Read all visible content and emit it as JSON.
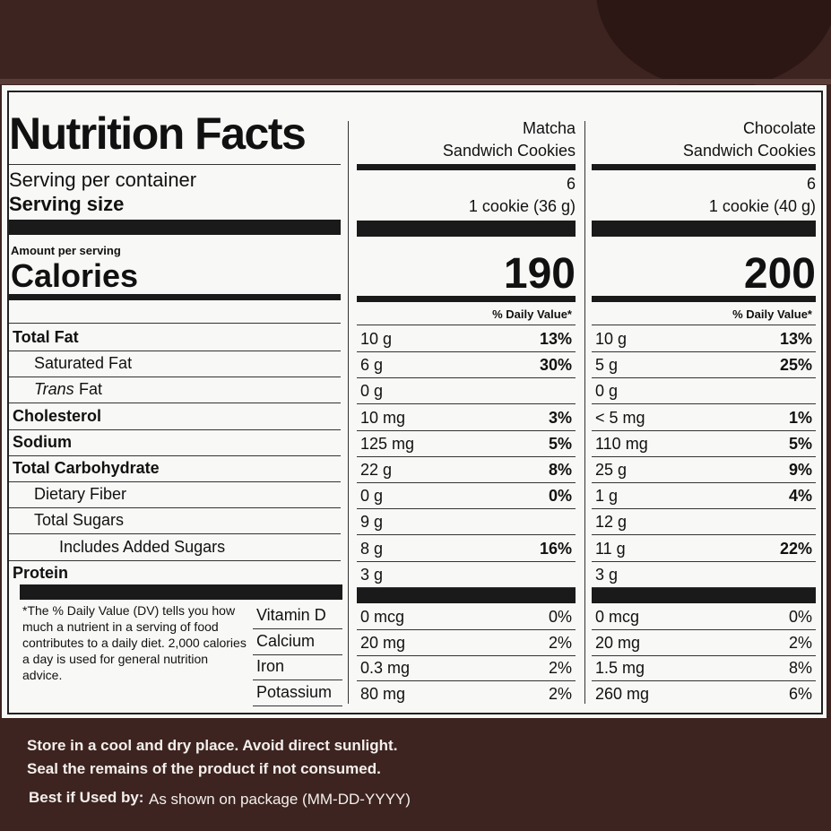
{
  "label": {
    "title": "Nutrition Facts",
    "serving_per_container": "Serving per container",
    "serving_size": "Serving size",
    "amount_per_serving": "Amount per serving",
    "calories": "Calories",
    "daily_value_header": "% Daily Value*",
    "products": [
      {
        "name_lines": [
          "Matcha",
          "Sandwich Cookies"
        ],
        "servings": "6",
        "serving_size": "1 cookie (36 g)",
        "calories": "190"
      },
      {
        "name_lines": [
          "Chocolate",
          "Sandwich Cookies"
        ],
        "servings": "6",
        "serving_size": "1 cookie (40 g)",
        "calories": "200"
      }
    ],
    "nutrients": [
      {
        "name": "Total Fat",
        "bold": true,
        "indent": 0,
        "values": [
          {
            "amount": "10 g",
            "dv": "13%"
          },
          {
            "amount": "10 g",
            "dv": "13%"
          }
        ]
      },
      {
        "name": "Saturated Fat",
        "bold": false,
        "indent": 1,
        "values": [
          {
            "amount": "6 g",
            "dv": "30%"
          },
          {
            "amount": "5 g",
            "dv": "25%"
          }
        ]
      },
      {
        "italic": "Trans",
        "name": "Fat",
        "bold": false,
        "indent": 1,
        "values": [
          {
            "amount": "0 g"
          },
          {
            "amount": "0 g"
          }
        ]
      },
      {
        "name": "Cholesterol",
        "bold": true,
        "indent": 0,
        "values": [
          {
            "amount": "10 mg",
            "dv": "3%"
          },
          {
            "amount": "< 5 mg",
            "dv": "1%"
          }
        ]
      },
      {
        "name": "Sodium",
        "bold": true,
        "indent": 0,
        "values": [
          {
            "amount": "125 mg",
            "dv": "5%"
          },
          {
            "amount": "110 mg",
            "dv": "5%"
          }
        ]
      },
      {
        "name": "Total Carbohydrate",
        "bold": true,
        "indent": 0,
        "values": [
          {
            "amount": "22 g",
            "dv": "8%"
          },
          {
            "amount": "25 g",
            "dv": "9%"
          }
        ]
      },
      {
        "name": "Dietary Fiber",
        "bold": false,
        "indent": 1,
        "values": [
          {
            "amount": "0 g",
            "dv": "0%"
          },
          {
            "amount": "1 g",
            "dv": "4%"
          }
        ]
      },
      {
        "name": "Total Sugars",
        "bold": false,
        "indent": 1,
        "values": [
          {
            "amount": "9 g"
          },
          {
            "amount": "12 g"
          }
        ]
      },
      {
        "name": "Includes Added Sugars",
        "bold": false,
        "indent": 2,
        "values": [
          {
            "amount": "8 g",
            "dv": "16%"
          },
          {
            "amount": "11 g",
            "dv": "22%"
          }
        ]
      },
      {
        "name": "Protein",
        "bold": true,
        "indent": 0,
        "values": [
          {
            "amount": "3 g"
          },
          {
            "amount": "3 g"
          }
        ]
      }
    ],
    "footnote": "*The % Daily Value (DV) tells you how much a nutrient in a serving of food contributes to a daily diet. 2,000 calories a day is used for general nutrition advice.",
    "vitamins": [
      {
        "name": "Vitamin D",
        "values": [
          {
            "amount": "0 mcg",
            "dv": "0%"
          },
          {
            "amount": "0 mcg",
            "dv": "0%"
          }
        ]
      },
      {
        "name": "Calcium",
        "values": [
          {
            "amount": "20 mg",
            "dv": "2%"
          },
          {
            "amount": "20 mg",
            "dv": "2%"
          }
        ]
      },
      {
        "name": "Iron",
        "values": [
          {
            "amount": "0.3 mg",
            "dv": "2%"
          },
          {
            "amount": "1.5 mg",
            "dv": "8%"
          }
        ]
      },
      {
        "name": "Potassium",
        "values": [
          {
            "amount": "80 mg",
            "dv": "2%"
          },
          {
            "amount": "260 mg",
            "dv": "6%"
          }
        ]
      }
    ]
  },
  "package": {
    "storage_lines": [
      "Store in a cool and dry place. Avoid direct sunlight.",
      "Seal the remains of the product if not consumed."
    ],
    "best_by_label": "Best if Used by:",
    "best_by_text": "As shown on package (MM-DD-YYYY)"
  }
}
